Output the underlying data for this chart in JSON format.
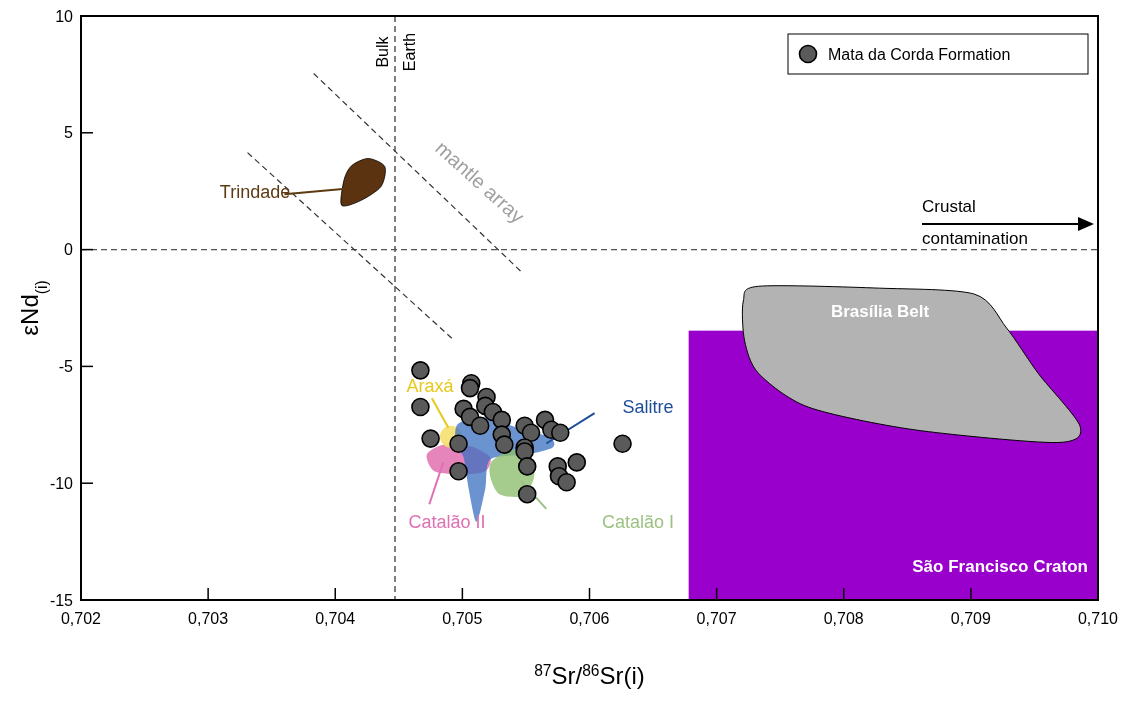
{
  "chart_data": {
    "type": "scatter",
    "xlabel": "$^{87}$Sr/$^{86}$Sr(i)",
    "ylabel": "εNd$_{(i)}$",
    "xlim": [
      0.702,
      0.71
    ],
    "ylim": [
      -15,
      10
    ],
    "xticks": [
      {
        "value": 0.702,
        "label": "0,702"
      },
      {
        "value": 0.703,
        "label": "0,703"
      },
      {
        "value": 0.704,
        "label": "0,704"
      },
      {
        "value": 0.705,
        "label": "0,705"
      },
      {
        "value": 0.706,
        "label": "0,706"
      },
      {
        "value": 0.707,
        "label": "0,707"
      },
      {
        "value": 0.708,
        "label": "0,708"
      },
      {
        "value": 0.709,
        "label": "0,709"
      },
      {
        "value": 0.71,
        "label": "0,710"
      }
    ],
    "yticks": [
      10,
      5,
      0,
      -5,
      -10,
      -15
    ],
    "legend": "top right",
    "marker": "circle",
    "series": [
      {
        "name": "Mata da Corda Formation",
        "color": "#5a5a5a",
        "x": [
          0.70467,
          0.70507,
          0.70506,
          0.70467,
          0.70519,
          0.70518,
          0.70501,
          0.70506,
          0.70524,
          0.70531,
          0.70514,
          0.70549,
          0.70554,
          0.70565,
          0.7057,
          0.70577,
          0.70531,
          0.70475,
          0.70497,
          0.70533,
          0.70549,
          0.70549,
          0.70551,
          0.7059,
          0.70575,
          0.70497,
          0.70576,
          0.70582,
          0.70551,
          0.70626
        ],
        "values": [
          -5.17,
          -5.72,
          -5.93,
          -6.74,
          -6.31,
          -6.69,
          -6.82,
          -7.16,
          -6.95,
          -7.29,
          -7.54,
          -7.54,
          -7.84,
          -7.29,
          -7.71,
          -7.84,
          -7.92,
          -8.09,
          -8.31,
          -8.35,
          -8.47,
          -8.64,
          -9.28,
          -9.11,
          -9.28,
          -9.49,
          -9.7,
          -9.96,
          -10.47,
          -8.31
        ]
      },
      {
        "type": "line",
        "color": "#333333",
        "line_style": "dashed",
        "marker": "none",
        "x": [
          0.70383,
          0.70546
        ],
        "values": [
          7.54,
          -0.93
        ]
      },
      {
        "type": "line",
        "color": "#333333",
        "line_style": "dashed",
        "marker": "none",
        "x": [
          0.70331,
          0.70492
        ],
        "values": [
          4.15,
          -3.81
        ]
      }
    ],
    "ref_lines": [
      {
        "axis": "x",
        "value": 0.70447,
        "label": "Bulk Earth",
        "color": "#555555",
        "line_style": "dashed"
      },
      {
        "axis": "y",
        "value": 0,
        "color": "#555555",
        "line_style": "dashed"
      }
    ],
    "annotations": [
      "Trindade",
      "mantle array",
      "Araxá",
      "Salitre",
      "Catalão I",
      "Catalão II",
      "Brasília Belt",
      "São Francisco Craton",
      "Crustal contamination"
    ]
  }
}
